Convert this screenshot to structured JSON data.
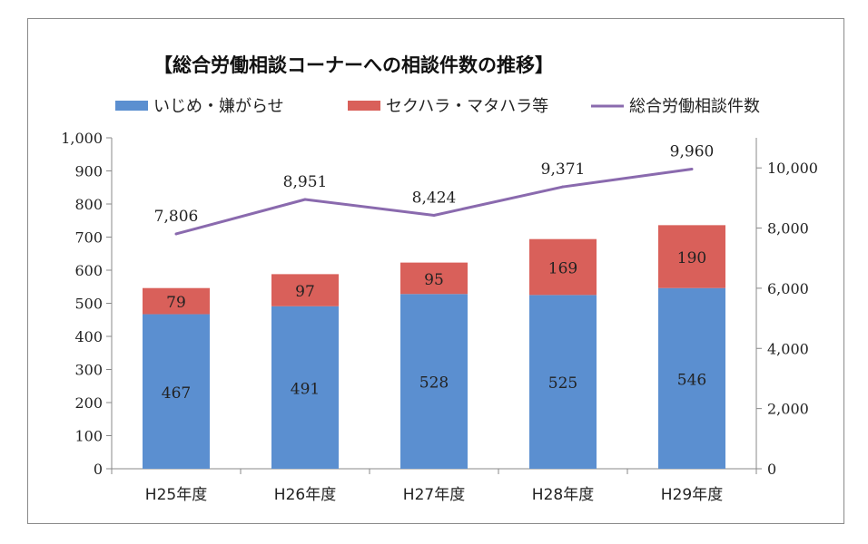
{
  "chart_data": {
    "type": "bar",
    "stacked": true,
    "title": "【総合労働相談コーナーへの相談件数の推移】",
    "categories": [
      "H25年度",
      "H26年度",
      "H27年度",
      "H28年度",
      "H29年度"
    ],
    "series": [
      {
        "name": "いじめ・嫌がらせ",
        "type": "bar",
        "axis": "left",
        "color": "#5b8fd0",
        "values": [
          467,
          491,
          528,
          525,
          546
        ]
      },
      {
        "name": "セクハラ・マタハラ等",
        "type": "bar",
        "axis": "left",
        "color": "#d9605a",
        "values": [
          79,
          97,
          95,
          169,
          190
        ]
      },
      {
        "name": "総合労働相談件数",
        "type": "line",
        "axis": "right",
        "color": "#8a6aae",
        "values": [
          7806,
          8951,
          8424,
          9371,
          9960
        ]
      }
    ],
    "y_left": {
      "ylim": [
        0,
        1000
      ],
      "ticks": [
        0,
        100,
        200,
        300,
        400,
        500,
        600,
        700,
        800,
        900,
        1000
      ]
    },
    "y_right": {
      "ylim": [
        0,
        11000
      ],
      "ticks": [
        0,
        2000,
        4000,
        6000,
        8000,
        10000
      ]
    },
    "grid": false,
    "legend_position": "top"
  }
}
